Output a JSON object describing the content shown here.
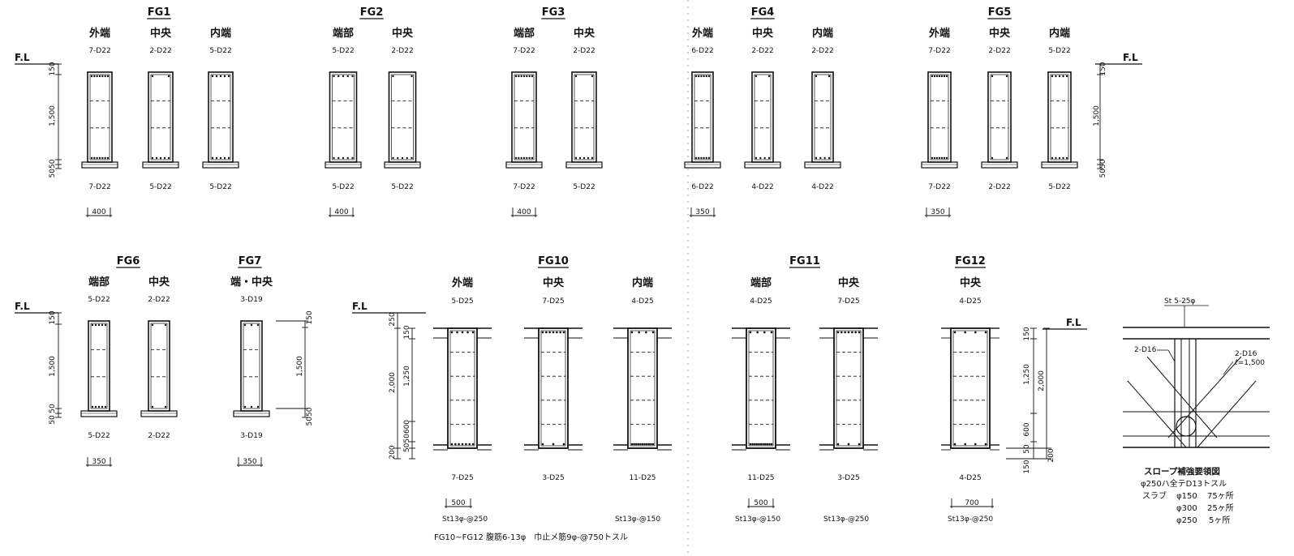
{
  "drawing": {
    "fl_label": "F.L",
    "frames": [
      {
        "id": "FG1",
        "width_label": "400",
        "sections": [
          {
            "position": "外端",
            "top_bar": "7-D22",
            "bottom_bar": "7-D22"
          },
          {
            "position": "中央",
            "top_bar": "2-D22",
            "bottom_bar": "5-D22"
          },
          {
            "position": "内端",
            "top_bar": "5-D22",
            "bottom_bar": "5-D22"
          }
        ]
      },
      {
        "id": "FG2",
        "width_label": "400",
        "sections": [
          {
            "position": "端部",
            "top_bar": "5-D22",
            "bottom_bar": "5-D22"
          },
          {
            "position": "中央",
            "top_bar": "2-D22",
            "bottom_bar": "5-D22"
          }
        ]
      },
      {
        "id": "FG3",
        "width_label": "400",
        "sections": [
          {
            "position": "端部",
            "top_bar": "7-D22",
            "bottom_bar": "7-D22"
          },
          {
            "position": "中央",
            "top_bar": "2-D22",
            "bottom_bar": "5-D22"
          }
        ]
      },
      {
        "id": "FG4",
        "width_label": "350",
        "sections": [
          {
            "position": "外端",
            "top_bar": "6-D22",
            "bottom_bar": "6-D22"
          },
          {
            "position": "中央",
            "top_bar": "2-D22",
            "bottom_bar": "4-D22"
          },
          {
            "position": "内端",
            "top_bar": "2-D22",
            "bottom_bar": "4-D22"
          }
        ]
      },
      {
        "id": "FG5",
        "width_label": "350",
        "sections": [
          {
            "position": "外端",
            "top_bar": "7-D22",
            "bottom_bar": "7-D22"
          },
          {
            "position": "中央",
            "top_bar": "2-D22",
            "bottom_bar": "2-D22"
          },
          {
            "position": "内端",
            "top_bar": "5-D22",
            "bottom_bar": "5-D22"
          }
        ]
      },
      {
        "id": "FG6",
        "width_label": "350",
        "sections": [
          {
            "position": "端部",
            "top_bar": "5-D22",
            "bottom_bar": "5-D22"
          },
          {
            "position": "中央",
            "top_bar": "2-D22",
            "bottom_bar": "2-D22"
          }
        ]
      },
      {
        "id": "FG7",
        "width_label": "350",
        "sections": [
          {
            "position": "端・中央",
            "top_bar": "3-D19",
            "bottom_bar": "3-D19"
          }
        ]
      },
      {
        "id": "FG10",
        "width_label": "500",
        "sections": [
          {
            "position": "外端",
            "top_bar": "5-D25",
            "bottom_bar": "7-D25"
          },
          {
            "position": "中央",
            "top_bar": "7-D25",
            "bottom_bar": "3-D25"
          },
          {
            "position": "内端",
            "top_bar": "4-D25",
            "bottom_bar": "11-D25"
          }
        ],
        "stirrups": [
          "St13φ-@250",
          "St13φ-@150"
        ]
      },
      {
        "id": "FG11",
        "width_label": "500",
        "sections": [
          {
            "position": "端部",
            "top_bar": "4-D25",
            "bottom_bar": "11-D25"
          },
          {
            "position": "中央",
            "top_bar": "7-D25",
            "bottom_bar": "3-D25"
          }
        ],
        "stirrups": [
          "St13φ-@150",
          "St13φ-@250"
        ]
      },
      {
        "id": "FG12",
        "width_label": "700",
        "sections": [
          {
            "position": "中央",
            "top_bar": "4-D25",
            "bottom_bar": "4-D25"
          }
        ],
        "stirrups": [
          "St13φ-@250"
        ]
      }
    ],
    "dims": {
      "h150": "150",
      "h1500": "1,500",
      "h5050": "5050",
      "h50": "50",
      "h250": "250",
      "h2000": "2,000",
      "h1250": "1,250",
      "h600": "600",
      "h200": "200",
      "h5050600": "5050600"
    },
    "footnote": "FG10~FG12 腹筋6-13φ　巾止メ筋9φ-@750トスル",
    "slope_detail": {
      "top_label": "St 5-25φ",
      "left_label": "2-D16",
      "right_label_1": "2-D16",
      "right_label_2": "ℓ=1,500",
      "title": "スロープ補強要領図",
      "line1": "φ250ハ全テD13トスル",
      "line2_prefix": "スラブ",
      "items": [
        {
          "dia": "φ150",
          "count": "75ヶ所"
        },
        {
          "dia": "φ300",
          "count": "25ヶ所"
        },
        {
          "dia": "φ250",
          "count": "5ヶ所"
        }
      ]
    }
  }
}
